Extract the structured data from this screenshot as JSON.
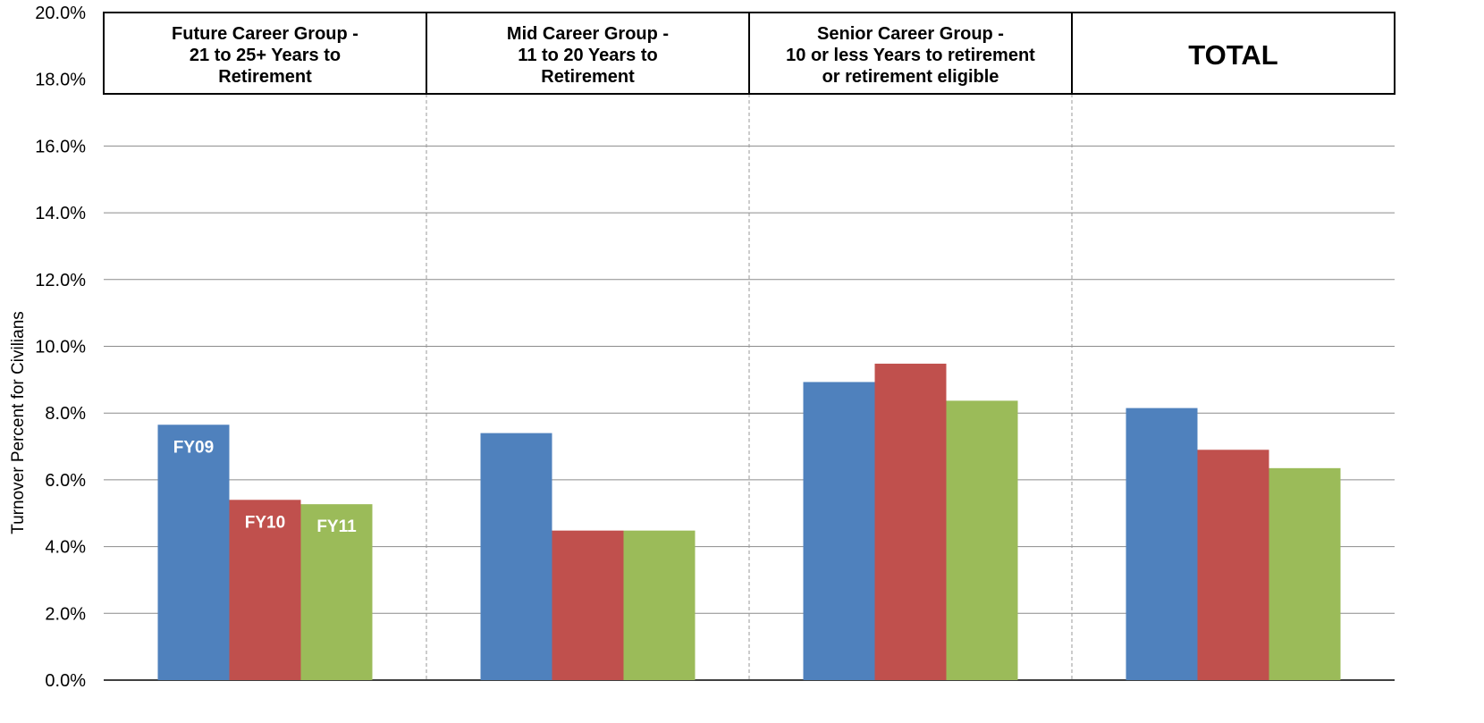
{
  "chart_data": {
    "type": "bar",
    "title": "",
    "ylabel": "Turnover Percent for Civilians",
    "xlabel": "",
    "ylim": [
      0,
      20
    ],
    "yticks": [
      "0.0%",
      "2.0%",
      "4.0%",
      "6.0%",
      "8.0%",
      "10.0%",
      "12.0%",
      "14.0%",
      "16.0%",
      "18.0%",
      "20.0%"
    ],
    "grid": true,
    "legend": "none (series labeled inside first group's bars)",
    "categories": [
      [
        "Future Career Group -",
        "21 to 25+ Years to",
        "Retirement"
      ],
      [
        "Mid Career Group -",
        "11 to 20 Years to",
        "Retirement"
      ],
      [
        "Senior Career Group -",
        "10 or less Years to retirement",
        "or retirement eligible"
      ],
      [
        "TOTAL"
      ]
    ],
    "series": [
      {
        "name": "FY09",
        "color": "#4f81bd",
        "values": [
          7.65,
          7.4,
          8.93,
          8.15
        ]
      },
      {
        "name": "FY10",
        "color": "#c0504d",
        "values": [
          5.4,
          4.48,
          9.48,
          6.9
        ]
      },
      {
        "name": "FY11",
        "color": "#9bbb59",
        "values": [
          5.27,
          4.48,
          8.37,
          6.35
        ]
      }
    ]
  }
}
